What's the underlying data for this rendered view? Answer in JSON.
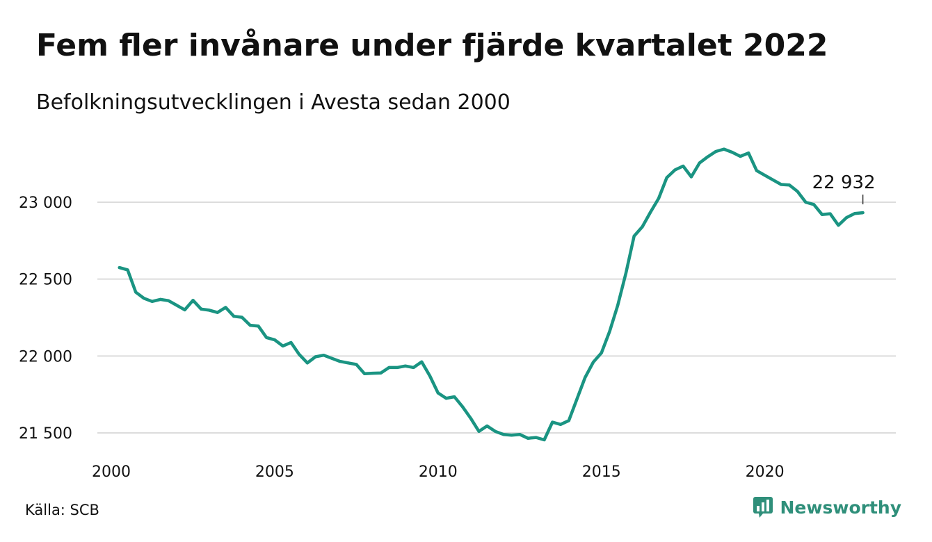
{
  "header": {
    "title": "Fem fler invånare under fjärde kvartalet 2022",
    "subtitle": "Befolkningsutvecklingen i Avesta sedan 2000"
  },
  "footer": {
    "source": "Källa: SCB",
    "brand": "Newsworthy"
  },
  "colors": {
    "line": "#1a9482",
    "grid": "#dcdcdc",
    "brand": "#2f8f7a"
  },
  "chart_data": {
    "type": "line",
    "title": "Fem fler invånare under fjärde kvartalet 2022",
    "subtitle": "Befolkningsutvecklingen i Avesta sedan 2000",
    "xlabel": "",
    "ylabel": "",
    "xlim": [
      2000,
      2023.2
    ],
    "ylim": [
      21420,
      23450
    ],
    "grid": true,
    "legend": "none",
    "x_ticks": [
      2000,
      2005,
      2010,
      2015,
      2020
    ],
    "x_tick_labels": [
      "2000",
      "2005",
      "2010",
      "2015",
      "2020"
    ],
    "y_ticks": [
      21500,
      22000,
      22500,
      23000
    ],
    "y_tick_labels": [
      "21 500",
      "22 000",
      "22 500",
      "23 000"
    ],
    "annotation": {
      "x": 2023.0,
      "y": 22932,
      "label": "22 932"
    },
    "series": [
      {
        "x": [
          2000.25,
          2000.5,
          2000.75,
          2001.0,
          2001.25,
          2001.5,
          2001.75,
          2002.0,
          2002.25,
          2002.5,
          2002.75,
          2003.0,
          2003.25,
          2003.5,
          2003.75,
          2004.0,
          2004.25,
          2004.5,
          2004.75,
          2005.0,
          2005.25,
          2005.5,
          2005.75,
          2006.0,
          2006.25,
          2006.5,
          2006.75,
          2007.0,
          2007.25,
          2007.5,
          2007.75,
          2008.0,
          2008.25,
          2008.5,
          2008.75,
          2009.0,
          2009.25,
          2009.5,
          2009.75,
          2010.0,
          2010.25,
          2010.5,
          2010.75,
          2011.0,
          2011.25,
          2011.5,
          2011.75,
          2012.0,
          2012.25,
          2012.5,
          2012.75,
          2013.0,
          2013.25,
          2013.5,
          2013.75,
          2014.0,
          2014.25,
          2014.5,
          2014.75,
          2015.0,
          2015.25,
          2015.5,
          2015.75,
          2016.0,
          2016.25,
          2016.5,
          2016.75,
          2017.0,
          2017.25,
          2017.5,
          2017.75,
          2018.0,
          2018.25,
          2018.5,
          2018.75,
          2019.0,
          2019.25,
          2019.5,
          2019.75,
          2020.0,
          2020.25,
          2020.5,
          2020.75,
          2021.0,
          2021.25,
          2021.5,
          2021.75,
          2022.0,
          2022.25,
          2022.5,
          2022.75,
          2023.0
        ],
        "y": [
          22575,
          22560,
          22415,
          22375,
          22355,
          22368,
          22360,
          22330,
          22300,
          22362,
          22305,
          22298,
          22283,
          22316,
          22258,
          22252,
          22200,
          22195,
          22120,
          22105,
          22065,
          22088,
          22010,
          21955,
          21995,
          22005,
          21985,
          21965,
          21955,
          21945,
          21885,
          21888,
          21890,
          21925,
          21925,
          21935,
          21925,
          21962,
          21870,
          21760,
          21725,
          21735,
          21670,
          21595,
          21510,
          21545,
          21510,
          21490,
          21485,
          21490,
          21465,
          21470,
          21455,
          21570,
          21555,
          21580,
          21720,
          21860,
          21960,
          22020,
          22160,
          22330,
          22540,
          22780,
          22840,
          22935,
          23025,
          23160,
          23210,
          23235,
          23165,
          23255,
          23295,
          23330,
          23345,
          23325,
          23298,
          23320,
          23205,
          23175,
          23145,
          23115,
          23112,
          23070,
          23000,
          22985,
          22920,
          22925,
          22850,
          22900,
          22927,
          22932
        ]
      }
    ]
  }
}
